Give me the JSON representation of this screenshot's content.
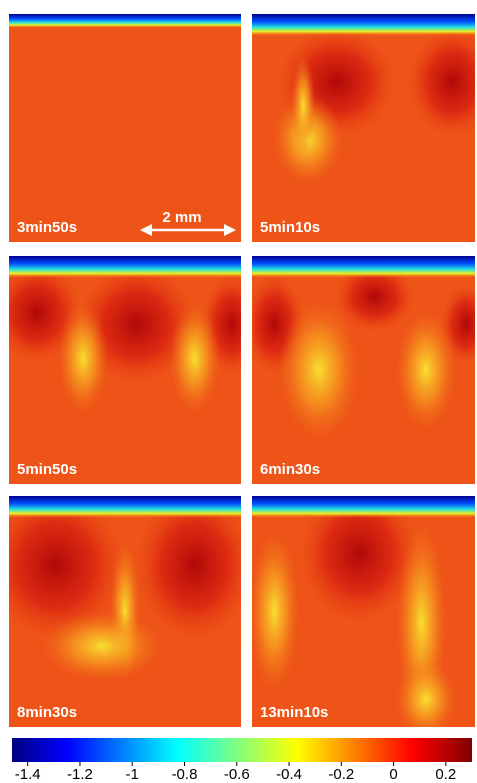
{
  "panels": [
    {
      "label": "3min50s"
    },
    {
      "label": "5min10s"
    },
    {
      "label": "5min50s"
    },
    {
      "label": "6min30s"
    },
    {
      "label": "8min30s"
    },
    {
      "label": "13min10s"
    }
  ],
  "scale_bar": {
    "label": "2 mm"
  },
  "colorbar": {
    "lim": [
      -1.46,
      0.3
    ],
    "ticks": [
      -1.4,
      -1.2,
      -1,
      -0.8,
      -0.6,
      -0.4,
      -0.2,
      0,
      0.2
    ]
  }
}
